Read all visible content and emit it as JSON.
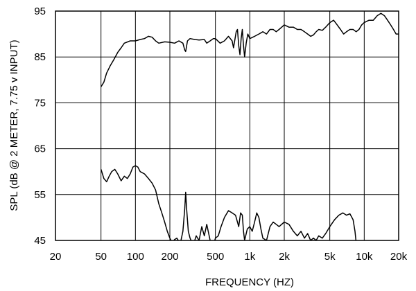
{
  "chart_data": {
    "type": "line",
    "x_scale": "log",
    "xlabel": "FREQUENCY  (HZ)",
    "ylabel": "SPL (dB @ 2 METER, 7.75 v  INPUT)",
    "xlim": [
      20,
      20000
    ],
    "ylim": [
      45,
      95
    ],
    "x_ticks": [
      {
        "value": 20,
        "label": "20"
      },
      {
        "value": 50,
        "label": "50"
      },
      {
        "value": 100,
        "label": "100"
      },
      {
        "value": 200,
        "label": "200"
      },
      {
        "value": 500,
        "label": "500"
      },
      {
        "value": 1000,
        "label": "1k"
      },
      {
        "value": 2000,
        "label": "2k"
      },
      {
        "value": 5000,
        "label": "5k"
      },
      {
        "value": 10000,
        "label": "10k"
      },
      {
        "value": 20000,
        "label": "20k"
      }
    ],
    "y_ticks": [
      {
        "value": 45,
        "label": "45"
      },
      {
        "value": 55,
        "label": "55"
      },
      {
        "value": 65,
        "label": "65"
      },
      {
        "value": 75,
        "label": "75"
      },
      {
        "value": 85,
        "label": "85"
      },
      {
        "value": 95,
        "label": "95"
      }
    ],
    "grid": true,
    "series": [
      {
        "color": "#000000",
        "points": [
          [
            50,
            78.5
          ],
          [
            53,
            79.5
          ],
          [
            56,
            81.5
          ],
          [
            60,
            83.0
          ],
          [
            65,
            84.5
          ],
          [
            70,
            86.0
          ],
          [
            75,
            87.0
          ],
          [
            80,
            88.0
          ],
          [
            90,
            88.5
          ],
          [
            100,
            88.5
          ],
          [
            110,
            88.8
          ],
          [
            120,
            89.0
          ],
          [
            130,
            89.5
          ],
          [
            140,
            89.3
          ],
          [
            150,
            88.5
          ],
          [
            160,
            88.0
          ],
          [
            180,
            88.3
          ],
          [
            200,
            88.2
          ],
          [
            220,
            88.0
          ],
          [
            240,
            88.5
          ],
          [
            260,
            88.0
          ],
          [
            270,
            86.5
          ],
          [
            275,
            86.2
          ],
          [
            285,
            88.5
          ],
          [
            300,
            89.0
          ],
          [
            330,
            88.8
          ],
          [
            360,
            88.7
          ],
          [
            400,
            88.8
          ],
          [
            420,
            88.0
          ],
          [
            450,
            88.5
          ],
          [
            480,
            89.0
          ],
          [
            500,
            89.0
          ],
          [
            550,
            88.0
          ],
          [
            600,
            88.5
          ],
          [
            650,
            89.5
          ],
          [
            700,
            88.5
          ],
          [
            720,
            87.0
          ],
          [
            760,
            90.5
          ],
          [
            780,
            91.0
          ],
          [
            800,
            87.5
          ],
          [
            820,
            85.5
          ],
          [
            840,
            89.0
          ],
          [
            860,
            91.0
          ],
          [
            880,
            87.5
          ],
          [
            900,
            85.0
          ],
          [
            930,
            88.0
          ],
          [
            960,
            90.0
          ],
          [
            1000,
            89.0
          ],
          [
            1100,
            89.5
          ],
          [
            1200,
            90.0
          ],
          [
            1300,
            90.5
          ],
          [
            1400,
            90.0
          ],
          [
            1500,
            91.0
          ],
          [
            1600,
            91.0
          ],
          [
            1700,
            90.5
          ],
          [
            1800,
            91.0
          ],
          [
            1900,
            91.5
          ],
          [
            2000,
            92.0
          ],
          [
            2200,
            91.5
          ],
          [
            2400,
            91.5
          ],
          [
            2600,
            91.0
          ],
          [
            2800,
            91.0
          ],
          [
            3000,
            90.5
          ],
          [
            3200,
            90.0
          ],
          [
            3400,
            89.5
          ],
          [
            3600,
            89.8
          ],
          [
            3800,
            90.5
          ],
          [
            4000,
            91.0
          ],
          [
            4300,
            90.8
          ],
          [
            4600,
            91.5
          ],
          [
            5000,
            92.5
          ],
          [
            5400,
            93.0
          ],
          [
            5800,
            92.0
          ],
          [
            6200,
            91.0
          ],
          [
            6600,
            90.0
          ],
          [
            7000,
            90.5
          ],
          [
            7500,
            91.0
          ],
          [
            8000,
            91.0
          ],
          [
            8500,
            90.5
          ],
          [
            9000,
            91.0
          ],
          [
            9500,
            92.0
          ],
          [
            10000,
            92.5
          ],
          [
            11000,
            93.0
          ],
          [
            12000,
            93.0
          ],
          [
            13000,
            94.0
          ],
          [
            14000,
            94.5
          ],
          [
            15000,
            94.0
          ],
          [
            16000,
            93.0
          ],
          [
            17000,
            92.0
          ],
          [
            18000,
            91.0
          ],
          [
            19000,
            90.0
          ],
          [
            20000,
            90.0
          ]
        ]
      },
      {
        "color": "#000000",
        "points": [
          [
            50,
            60.5
          ],
          [
            53,
            58.5
          ],
          [
            56,
            57.8
          ],
          [
            59,
            59.0
          ],
          [
            62,
            60.0
          ],
          [
            66,
            60.5
          ],
          [
            70,
            59.5
          ],
          [
            75,
            58.0
          ],
          [
            80,
            59.0
          ],
          [
            85,
            58.5
          ],
          [
            90,
            59.5
          ],
          [
            95,
            61.0
          ],
          [
            100,
            61.3
          ],
          [
            105,
            61.0
          ],
          [
            110,
            60.0
          ],
          [
            120,
            59.5
          ],
          [
            130,
            58.5
          ],
          [
            140,
            57.5
          ],
          [
            150,
            56.0
          ],
          [
            160,
            53.0
          ],
          [
            170,
            51.0
          ],
          [
            180,
            49.0
          ],
          [
            190,
            47.0
          ],
          [
            200,
            45.5
          ],
          [
            210,
            44.5
          ],
          [
            220,
            45.2
          ],
          [
            230,
            45.5
          ],
          [
            240,
            44.8
          ],
          [
            250,
            45.0
          ],
          [
            260,
            47.0
          ],
          [
            270,
            52.0
          ],
          [
            275,
            55.5
          ],
          [
            280,
            52.0
          ],
          [
            290,
            47.0
          ],
          [
            300,
            45.5
          ],
          [
            320,
            44.0
          ],
          [
            340,
            46.0
          ],
          [
            360,
            45.0
          ],
          [
            380,
            48.0
          ],
          [
            400,
            46.0
          ],
          [
            420,
            48.5
          ],
          [
            450,
            45.0
          ],
          [
            480,
            44.0
          ],
          [
            500,
            45.5
          ],
          [
            530,
            46.0
          ],
          [
            560,
            48.0
          ],
          [
            600,
            50.0
          ],
          [
            650,
            51.5
          ],
          [
            700,
            51.0
          ],
          [
            750,
            50.5
          ],
          [
            800,
            48.0
          ],
          [
            830,
            51.0
          ],
          [
            860,
            50.5
          ],
          [
            880,
            47.0
          ],
          [
            900,
            45.0
          ],
          [
            950,
            47.5
          ],
          [
            1000,
            48.0
          ],
          [
            1050,
            47.0
          ],
          [
            1100,
            49.0
          ],
          [
            1150,
            51.0
          ],
          [
            1200,
            50.0
          ],
          [
            1250,
            47.5
          ],
          [
            1300,
            45.5
          ],
          [
            1400,
            45.0
          ],
          [
            1500,
            48.0
          ],
          [
            1600,
            49.0
          ],
          [
            1700,
            48.5
          ],
          [
            1800,
            48.0
          ],
          [
            2000,
            49.0
          ],
          [
            2200,
            48.5
          ],
          [
            2400,
            47.0
          ],
          [
            2600,
            46.0
          ],
          [
            2800,
            47.0
          ],
          [
            3000,
            45.5
          ],
          [
            3200,
            46.5
          ],
          [
            3400,
            45.0
          ],
          [
            3600,
            45.5
          ],
          [
            3800,
            45.0
          ],
          [
            4000,
            46.0
          ],
          [
            4300,
            45.5
          ],
          [
            4600,
            46.5
          ],
          [
            5000,
            48.0
          ],
          [
            5500,
            49.5
          ],
          [
            6000,
            50.5
          ],
          [
            6500,
            51.0
          ],
          [
            7000,
            50.5
          ],
          [
            7500,
            50.8
          ],
          [
            8000,
            49.5
          ],
          [
            8300,
            47.0
          ],
          [
            8500,
            44.5
          ]
        ]
      }
    ]
  }
}
